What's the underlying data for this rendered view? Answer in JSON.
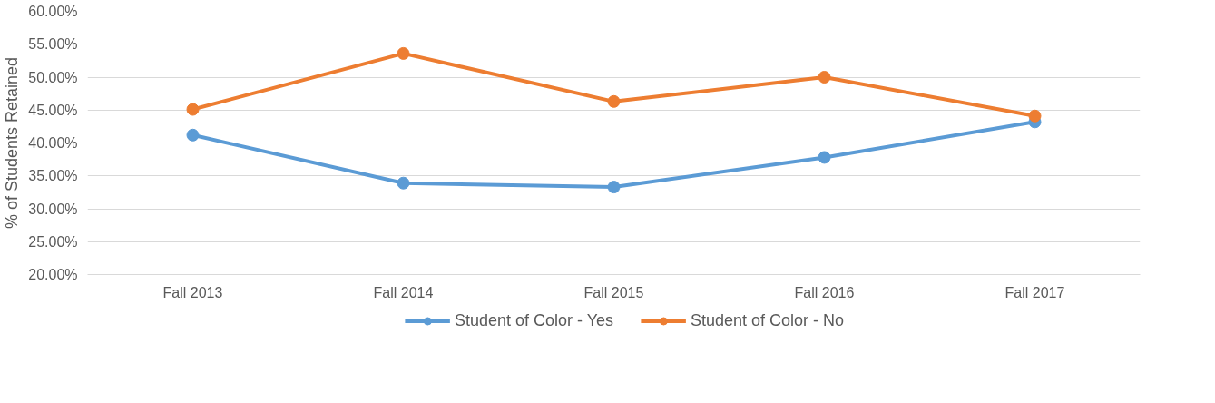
{
  "chart_data": {
    "type": "line",
    "ylabel": "% of Students Retained",
    "categories": [
      "Fall 2013",
      "Fall 2014",
      "Fall 2015",
      "Fall 2016",
      "Fall 2017"
    ],
    "series": [
      {
        "name": "Student of Color - Yes",
        "color": "#5b9bd5",
        "values": [
          41.2,
          33.9,
          33.3,
          37.8,
          43.2
        ]
      },
      {
        "name": "Student of Color - No",
        "color": "#ed7d31",
        "values": [
          45.1,
          53.6,
          46.3,
          50.0,
          44.1
        ]
      }
    ],
    "ylim": [
      20,
      60
    ],
    "yticks": [
      {
        "value": 20,
        "label": "20.00%"
      },
      {
        "value": 25,
        "label": "25.00%"
      },
      {
        "value": 30,
        "label": "30.00%"
      },
      {
        "value": 35,
        "label": "35.00%"
      },
      {
        "value": 40,
        "label": "40.00%"
      },
      {
        "value": 45,
        "label": "45.00%"
      },
      {
        "value": 50,
        "label": "50.00%"
      },
      {
        "value": 55,
        "label": "55.00%"
      },
      {
        "value": 60,
        "label": "60.00%"
      }
    ],
    "grid": "y",
    "legend": "bottom",
    "marker": "circle",
    "line_style": "solid"
  }
}
